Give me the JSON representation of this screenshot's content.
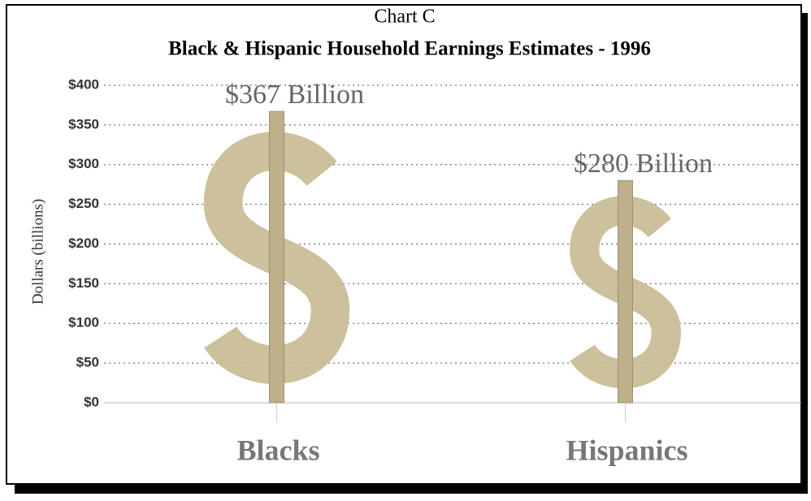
{
  "chart_data": {
    "type": "bar",
    "title": "Chart C",
    "subtitle": "Black & Hispanic Household Earnings Estimates - 1996",
    "y_label": "Dollars (billions)",
    "categories": [
      "Blacks",
      "Hispanics"
    ],
    "values": [
      367,
      280
    ],
    "value_labels": [
      "$367 Billion",
      "$280 Billion"
    ],
    "color": "#c9bd98",
    "ylim": [
      0,
      400
    ],
    "yticks": [
      {
        "value": 0,
        "label": "$0"
      },
      {
        "value": 50,
        "label": "$50"
      },
      {
        "value": 100,
        "label": "$100"
      },
      {
        "value": 150,
        "label": "$150"
      },
      {
        "value": 200,
        "label": "$200"
      },
      {
        "value": 250,
        "label": "$250"
      },
      {
        "value": 300,
        "label": "$300"
      },
      {
        "value": 350,
        "label": "$350"
      },
      {
        "value": 400,
        "label": "$400"
      }
    ],
    "grid": true
  }
}
